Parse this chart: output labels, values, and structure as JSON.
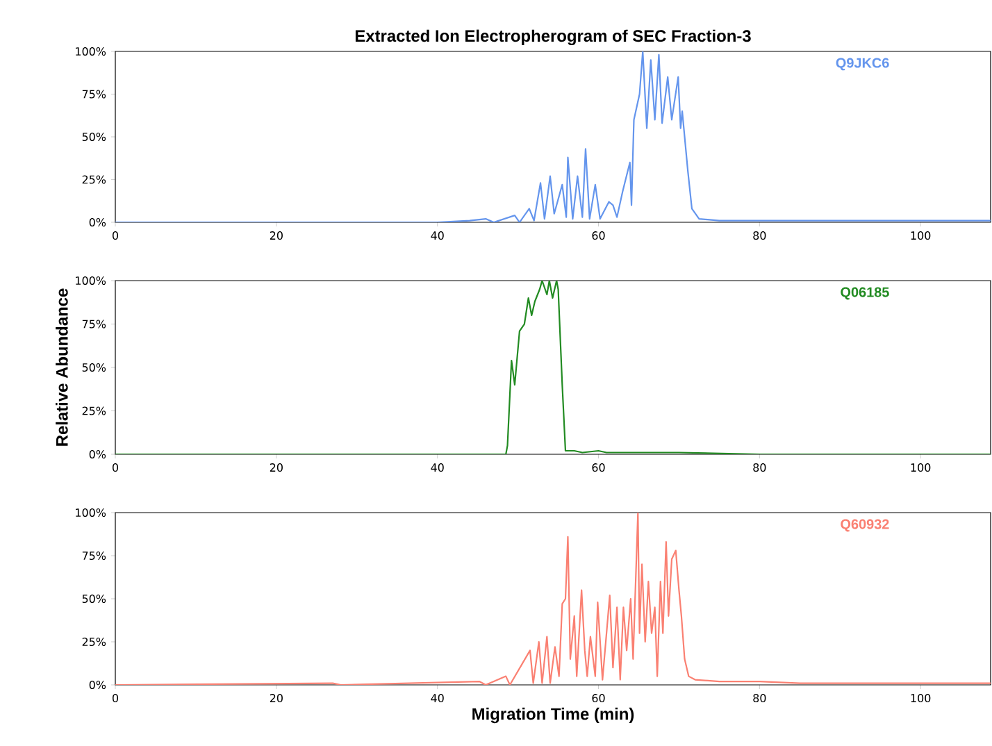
{
  "chart_data": [
    {
      "type": "line",
      "title": "Extracted Ion Electropherogram of SEC Fraction-3",
      "x": [
        0,
        20,
        40,
        44,
        46,
        47,
        49.6,
        50.2,
        51.4,
        52,
        52.8,
        53.3,
        54,
        54.5,
        55.5,
        56,
        56.2,
        56.8,
        57.4,
        58,
        58.4,
        58.9,
        59.6,
        60.2,
        61.3,
        61.8,
        62.3,
        63,
        63.9,
        64.1,
        64.4,
        65.1,
        65.5,
        66,
        66.5,
        67,
        67.5,
        67.9,
        68.6,
        69.1,
        69.9,
        70.2,
        70.4,
        71.1,
        71.6,
        72.5,
        75,
        80,
        90,
        100,
        108.7
      ],
      "series": [
        {
          "name": "Q9JKC6",
          "color": "#6495ed",
          "values": [
            0,
            0,
            0,
            1,
            2,
            0,
            4,
            0,
            8,
            1,
            23,
            2,
            27,
            5,
            22,
            3,
            38,
            2,
            27,
            3,
            43,
            2,
            22,
            2,
            12,
            10,
            3,
            18,
            35,
            10,
            60,
            75,
            100,
            55,
            95,
            60,
            98,
            58,
            85,
            60,
            85,
            55,
            65,
            30,
            8,
            2,
            1,
            1,
            1,
            1,
            1
          ]
        }
      ],
      "xlim": [
        0,
        108.7
      ],
      "xticks": [
        0,
        20,
        40,
        60,
        80,
        100
      ],
      "ylim": [
        0,
        100
      ],
      "yticks": [
        {
          "value": 0,
          "label": "0%"
        },
        {
          "value": 25,
          "label": "25%"
        },
        {
          "value": 50,
          "label": "50%"
        },
        {
          "value": 75,
          "label": "75%"
        },
        {
          "value": 100,
          "label": "100%"
        }
      ]
    },
    {
      "type": "line",
      "ylabel": "Relative Abundance",
      "x": [
        0,
        40,
        48.5,
        48.7,
        49.2,
        49.6,
        50.2,
        50.8,
        51.3,
        51.7,
        52.1,
        52.7,
        53.0,
        53.6,
        53.9,
        54.3,
        54.8,
        55.0,
        55.5,
        55.9,
        57,
        58,
        60,
        61,
        65,
        70,
        80,
        108.7
      ],
      "series": [
        {
          "name": "Q06185",
          "color": "#228b22",
          "values": [
            0,
            0,
            0,
            5,
            54,
            40,
            71,
            75,
            90,
            80,
            88,
            95,
            100,
            92,
            100,
            90,
            100,
            95,
            40,
            2,
            2,
            1,
            2,
            1,
            1,
            1,
            0,
            0
          ]
        }
      ],
      "xlim": [
        0,
        108.7
      ],
      "xticks": [
        0,
        20,
        40,
        60,
        80,
        100
      ],
      "ylim": [
        0,
        100
      ],
      "yticks": [
        {
          "value": 0,
          "label": "0%"
        },
        {
          "value": 25,
          "label": "25%"
        },
        {
          "value": 50,
          "label": "50%"
        },
        {
          "value": 75,
          "label": "75%"
        },
        {
          "value": 100,
          "label": "100%"
        }
      ]
    },
    {
      "type": "line",
      "xlabel": "Migration Time (min)",
      "x": [
        0,
        27,
        28,
        45.2,
        46,
        48.5,
        49,
        51.5,
        51.9,
        52.6,
        53,
        53.6,
        54,
        54.6,
        55.1,
        55.5,
        55.9,
        56.2,
        56.5,
        57.0,
        57.3,
        57.9,
        58.3,
        58.6,
        59.0,
        59.6,
        59.9,
        60.5,
        61.0,
        61.4,
        61.8,
        62.3,
        62.7,
        63.1,
        63.5,
        64.0,
        64.3,
        64.9,
        65.1,
        65.4,
        65.8,
        66.2,
        66.6,
        67.0,
        67.3,
        67.7,
        68.0,
        68.4,
        68.7,
        69.1,
        69.6,
        70.0,
        70.3,
        70.7,
        71.2,
        72,
        75,
        80,
        85,
        100,
        108.7
      ],
      "series": [
        {
          "name": "Q60932",
          "color": "#fa8072",
          "values": [
            0,
            1,
            0,
            2,
            0,
            5,
            0,
            20,
            1,
            25,
            1,
            28,
            1,
            22,
            5,
            47,
            50,
            86,
            15,
            40,
            5,
            55,
            20,
            5,
            28,
            5,
            48,
            3,
            30,
            52,
            10,
            45,
            3,
            45,
            20,
            50,
            15,
            100,
            30,
            70,
            25,
            60,
            30,
            45,
            5,
            60,
            30,
            83,
            40,
            73,
            78,
            55,
            40,
            15,
            5,
            3,
            2,
            2,
            1,
            1,
            1
          ]
        }
      ],
      "xlim": [
        0,
        108.7
      ],
      "xticks": [
        0,
        20,
        40,
        60,
        80,
        100
      ],
      "ylim": [
        0,
        100
      ],
      "yticks": [
        {
          "value": 0,
          "label": "0%"
        },
        {
          "value": 25,
          "label": "25%"
        },
        {
          "value": 50,
          "label": "50%"
        },
        {
          "value": 75,
          "label": "75%"
        },
        {
          "value": 100,
          "label": "100%"
        }
      ]
    }
  ]
}
